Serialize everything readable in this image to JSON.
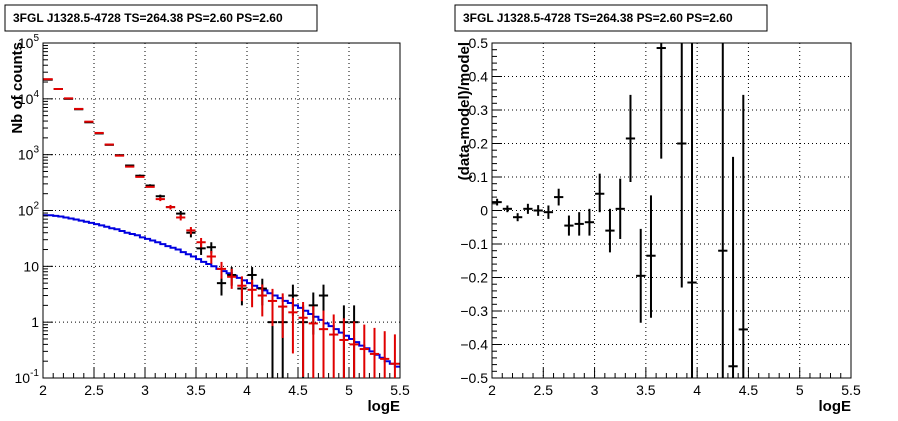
{
  "chart_data": [
    {
      "type": "line",
      "title": "3FGL J1328.5-4728 TS=264.38 PS=2.60 PS=2.60",
      "xlabel": "logE",
      "ylabel": "Nb of counts",
      "xlim": [
        2,
        5.5
      ],
      "ylim": [
        0.1,
        100000
      ],
      "yscale": "log",
      "grid": true,
      "x_tick_labels": [
        "2",
        "2.5",
        "3",
        "3.5",
        "4",
        "4.5",
        "5",
        "5.5"
      ],
      "y_tick_labels": [
        "10^-1",
        "1",
        "10",
        "10^2",
        "10^3",
        "10^4",
        "10^5"
      ],
      "y_tick_display": [
        {
          "base": "10",
          "exp": "-1"
        },
        {
          "base": "1",
          "exp": ""
        },
        {
          "base": "10",
          "exp": ""
        },
        {
          "base": "10",
          "exp": "2"
        },
        {
          "base": "10",
          "exp": "3"
        },
        {
          "base": "10",
          "exp": "4"
        },
        {
          "base": "10",
          "exp": "5"
        }
      ],
      "colors": {
        "data": "#000000",
        "model": "#e00000",
        "background": "#0000e0"
      },
      "series": [
        {
          "key": "data",
          "points": [
            {
              "x": 2.05,
              "y": 22000,
              "lo": 21700,
              "hi": 22300
            },
            {
              "x": 2.15,
              "y": 15000,
              "lo": 14750,
              "hi": 15250
            },
            {
              "x": 2.25,
              "y": 10000,
              "lo": 9800,
              "hi": 10200
            },
            {
              "x": 2.35,
              "y": 6500,
              "lo": 6350,
              "hi": 6650
            },
            {
              "x": 2.45,
              "y": 3800,
              "lo": 3700,
              "hi": 3900
            },
            {
              "x": 2.55,
              "y": 2400,
              "lo": 2330,
              "hi": 2470
            },
            {
              "x": 2.65,
              "y": 1500,
              "lo": 1450,
              "hi": 1550
            },
            {
              "x": 2.75,
              "y": 980,
              "lo": 950,
              "hi": 1010
            },
            {
              "x": 2.85,
              "y": 640,
              "lo": 615,
              "hi": 665
            },
            {
              "x": 2.95,
              "y": 420,
              "lo": 400,
              "hi": 440
            },
            {
              "x": 3.05,
              "y": 280,
              "lo": 265,
              "hi": 295
            },
            {
              "x": 3.15,
              "y": 180,
              "lo": 168,
              "hi": 192
            },
            {
              "x": 3.25,
              "y": 115,
              "lo": 105,
              "hi": 125
            },
            {
              "x": 3.35,
              "y": 88,
              "lo": 78,
              "hi": 98
            },
            {
              "x": 3.45,
              "y": 40,
              "lo": 33,
              "hi": 47
            },
            {
              "x": 3.55,
              "y": 21,
              "lo": 16,
              "hi": 26
            },
            {
              "x": 3.65,
              "y": 22,
              "lo": 17,
              "hi": 27
            },
            {
              "x": 3.75,
              "y": 5,
              "lo": 3,
              "hi": 7.5
            },
            {
              "x": 3.85,
              "y": 7,
              "lo": 4.5,
              "hi": 9.7
            },
            {
              "x": 3.95,
              "y": 4,
              "lo": 2,
              "hi": 6
            },
            {
              "x": 4.05,
              "y": 7,
              "lo": 4.5,
              "hi": 9.7
            },
            {
              "x": 4.15,
              "y": 4,
              "lo": 2,
              "hi": 6
            },
            {
              "x": 4.25,
              "y": 1,
              "lo": 0.1,
              "hi": 2
            },
            {
              "x": 4.35,
              "y": 1,
              "lo": 0.1,
              "hi": 2
            },
            {
              "x": 4.45,
              "y": 3,
              "lo": 1.3,
              "hi": 4.7
            },
            {
              "x": 4.55,
              "y": 1,
              "lo": 0.1,
              "hi": 2
            },
            {
              "x": 4.65,
              "y": 2,
              "lo": 0.6,
              "hi": 3.4
            },
            {
              "x": 4.75,
              "y": 3,
              "lo": 1.3,
              "hi": 4.7
            },
            {
              "x": 4.95,
              "y": 1,
              "lo": 0.1,
              "hi": 2
            },
            {
              "x": 5.05,
              "y": 1,
              "lo": 0.1,
              "hi": 2
            }
          ]
        },
        {
          "key": "model",
          "points": [
            {
              "x": 2.05,
              "y": 22500
            },
            {
              "x": 2.15,
              "y": 15000
            },
            {
              "x": 2.25,
              "y": 10200
            },
            {
              "x": 2.35,
              "y": 6600
            },
            {
              "x": 2.45,
              "y": 3900
            },
            {
              "x": 2.55,
              "y": 2450
            },
            {
              "x": 2.65,
              "y": 1520
            },
            {
              "x": 2.75,
              "y": 960
            },
            {
              "x": 2.85,
              "y": 610
            },
            {
              "x": 2.95,
              "y": 400
            },
            {
              "x": 3.05,
              "y": 265
            },
            {
              "x": 3.15,
              "y": 160
            },
            {
              "x": 3.25,
              "y": 115
            },
            {
              "x": 3.35,
              "y": 75
            },
            {
              "x": 3.45,
              "y": 44
            },
            {
              "x": 3.55,
              "y": 27
            },
            {
              "x": 3.65,
              "y": 15
            },
            {
              "x": 3.75,
              "y": 9
            },
            {
              "x": 3.85,
              "y": 6.5
            },
            {
              "x": 3.95,
              "y": 4.5
            },
            {
              "x": 4.05,
              "y": 3.8
            },
            {
              "x": 4.15,
              "y": 3.0
            },
            {
              "x": 4.25,
              "y": 2.4
            },
            {
              "x": 4.35,
              "y": 1.9
            },
            {
              "x": 4.45,
              "y": 1.5
            },
            {
              "x": 4.55,
              "y": 1.2
            },
            {
              "x": 4.65,
              "y": 0.95
            },
            {
              "x": 4.75,
              "y": 0.75
            },
            {
              "x": 4.85,
              "y": 0.6
            },
            {
              "x": 4.95,
              "y": 0.48
            },
            {
              "x": 5.05,
              "y": 0.4
            },
            {
              "x": 5.15,
              "y": 0.33
            },
            {
              "x": 5.25,
              "y": 0.27
            },
            {
              "x": 5.35,
              "y": 0.22
            },
            {
              "x": 5.45,
              "y": 0.18
            }
          ]
        },
        {
          "key": "background",
          "step_edges": [
            2.0,
            2.05,
            2.1,
            2.15,
            2.2,
            2.25,
            2.3,
            2.35,
            2.4,
            2.45,
            2.5,
            2.55,
            2.6,
            2.65,
            2.7,
            2.75,
            2.8,
            2.85,
            2.9,
            2.95,
            3.0,
            3.05,
            3.1,
            3.15,
            3.2,
            3.25,
            3.3,
            3.35,
            3.4,
            3.45,
            3.5,
            3.55,
            3.6,
            3.65,
            3.7,
            3.75,
            3.8,
            3.85,
            3.9,
            3.95,
            4.0,
            4.05,
            4.1,
            4.15,
            4.2,
            4.25,
            4.3,
            4.35,
            4.4,
            4.45,
            4.5,
            4.55,
            4.6,
            4.65,
            4.7,
            4.75,
            4.8,
            4.85,
            4.9,
            4.95,
            5.0,
            5.05,
            5.1,
            5.15,
            5.2,
            5.25,
            5.3,
            5.35,
            5.4,
            5.45,
            5.5
          ],
          "step_values": [
            82,
            82,
            80,
            78,
            75,
            72,
            69,
            66,
            63,
            60,
            57,
            54,
            51,
            48,
            46,
            43,
            40,
            38,
            36,
            33,
            31,
            29,
            27,
            25,
            23,
            21.5,
            20,
            18,
            16.5,
            15,
            13.5,
            12,
            11,
            10,
            9,
            8.2,
            7.5,
            6.8,
            6.2,
            5.6,
            5.0,
            4.5,
            4.1,
            3.7,
            3.3,
            3.0,
            2.7,
            2.4,
            2.2,
            2.0,
            1.8,
            1.6,
            1.4,
            1.25,
            1.1,
            0.95,
            0.85,
            0.75,
            0.65,
            0.57,
            0.5,
            0.44,
            0.38,
            0.34,
            0.3,
            0.26,
            0.23,
            0.2,
            0.18,
            0.16
          ]
        }
      ]
    },
    {
      "type": "scatter",
      "title": "3FGL J1328.5-4728 TS=264.38 PS=2.60 PS=2.60",
      "xlabel": "logE",
      "ylabel": "(data-model)/model",
      "xlim": [
        2,
        5.5
      ],
      "ylim": [
        -0.5,
        0.5
      ],
      "grid": true,
      "x_tick_labels": [
        "2",
        "2.5",
        "3",
        "3.5",
        "4",
        "4.5",
        "5",
        "5.5"
      ],
      "y_tick_labels": [
        "−0.5",
        "−0.4",
        "−0.3",
        "−0.2",
        "−0.1",
        "0",
        "0.1",
        "0.2",
        "0.3",
        "0.4",
        "0.5"
      ],
      "series": [
        {
          "key": "residuals",
          "points": [
            {
              "x": 2.05,
              "y": 0.025,
              "lo": 0.015,
              "hi": 0.035
            },
            {
              "x": 2.15,
              "y": 0.005,
              "lo": -0.005,
              "hi": 0.015
            },
            {
              "x": 2.25,
              "y": -0.02,
              "lo": -0.032,
              "hi": -0.008
            },
            {
              "x": 2.35,
              "y": 0.005,
              "lo": -0.01,
              "hi": 0.02
            },
            {
              "x": 2.45,
              "y": 0.0,
              "lo": -0.016,
              "hi": 0.016
            },
            {
              "x": 2.55,
              "y": -0.005,
              "lo": -0.025,
              "hi": 0.015
            },
            {
              "x": 2.65,
              "y": 0.04,
              "lo": 0.015,
              "hi": 0.065
            },
            {
              "x": 2.75,
              "y": -0.045,
              "lo": -0.075,
              "hi": -0.015
            },
            {
              "x": 2.85,
              "y": -0.04,
              "lo": -0.075,
              "hi": -0.005
            },
            {
              "x": 2.95,
              "y": -0.035,
              "lo": -0.075,
              "hi": 0.005
            },
            {
              "x": 3.05,
              "y": 0.05,
              "lo": -0.005,
              "hi": 0.11
            },
            {
              "x": 3.15,
              "y": -0.06,
              "lo": -0.125,
              "hi": 0.005
            },
            {
              "x": 3.25,
              "y": 0.005,
              "lo": -0.085,
              "hi": 0.095
            },
            {
              "x": 3.35,
              "y": 0.215,
              "lo": 0.085,
              "hi": 0.345
            },
            {
              "x": 3.45,
              "y": -0.195,
              "lo": -0.335,
              "hi": -0.055
            },
            {
              "x": 3.55,
              "y": -0.135,
              "lo": -0.32,
              "hi": 0.045
            },
            {
              "x": 3.65,
              "y": 0.485,
              "lo": 0.155,
              "hi": 0.5
            },
            {
              "x": 3.85,
              "y": 0.2,
              "lo": -0.23,
              "hi": 0.5
            },
            {
              "x": 3.95,
              "y": -0.215,
              "lo": -0.5,
              "hi": 0.5
            },
            {
              "x": 4.25,
              "y": -0.12,
              "lo": -0.5,
              "hi": 0.5
            },
            {
              "x": 4.35,
              "y": -0.465,
              "lo": -0.5,
              "hi": 0.16
            },
            {
              "x": 4.45,
              "y": -0.355,
              "lo": -0.5,
              "hi": 0.345
            }
          ]
        }
      ]
    }
  ]
}
